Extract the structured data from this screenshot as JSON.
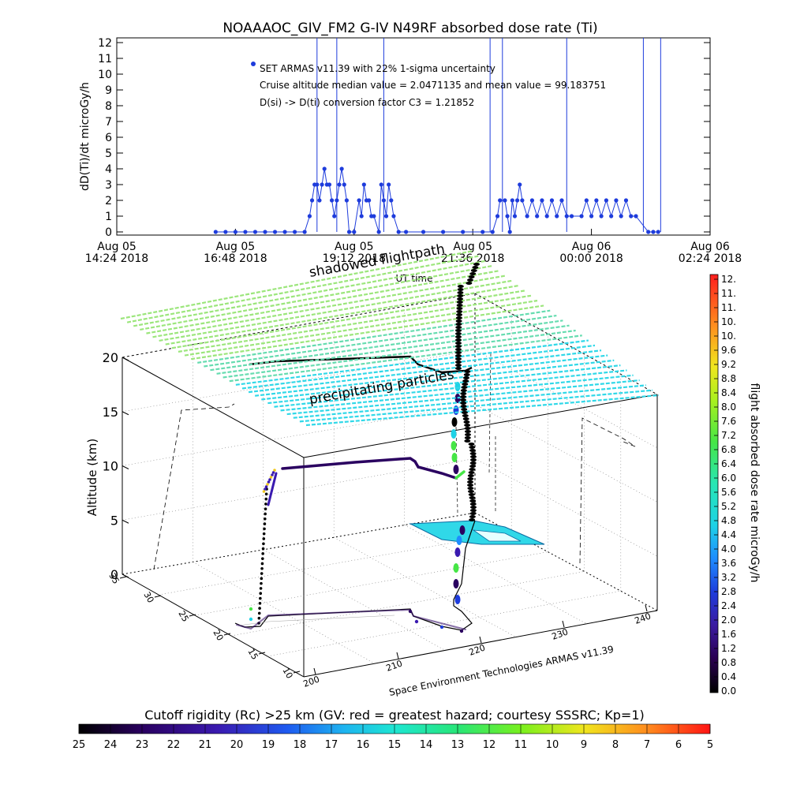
{
  "chart_data": [
    {
      "type": "scatter",
      "title": "NOAAAOC_GIV_FM2 G-IV    N49RF  absorbed dose rate (Ti)",
      "ylabel": "dD(Ti)/dt microGy/h",
      "xlabel": "UT time",
      "ylim": [
        0,
        12
      ],
      "yticks": [
        "0",
        "1",
        "2",
        "3",
        "4",
        "5",
        "6",
        "7",
        "8",
        "9",
        "10",
        "11",
        "12"
      ],
      "xlim": [
        0,
        12
      ],
      "xticks": [
        {
          "x": 0,
          "line1": "Aug 05",
          "line2": "14:24 2018"
        },
        {
          "x": 2.4,
          "line1": "Aug 05",
          "line2": "16:48 2018"
        },
        {
          "x": 4.8,
          "line1": "Aug 05",
          "line2": "19:12 2018"
        },
        {
          "x": 7.2,
          "line1": "Aug 05",
          "line2": "21:36 2018"
        },
        {
          "x": 9.6,
          "line1": "Aug 06",
          "line2": "00:00 2018"
        },
        {
          "x": 12,
          "line1": "Aug 06",
          "line2": "02:24 2018"
        }
      ],
      "annotations": [
        "SET ARMAS v11.39 with 22% 1-sigma uncertainty",
        "Cruise altitude median value = 2.0471135 and mean value = 99.183751",
        "D(si) -> D(ti) conversion factor C3 = 1.21852"
      ],
      "series_color": "#1e3cdc",
      "spikes_x": [
        4.05,
        4.45,
        5.4,
        7.55,
        7.8,
        9.1,
        10.65,
        11.0
      ],
      "points": [
        [
          2.0,
          0
        ],
        [
          2.2,
          0
        ],
        [
          2.4,
          0
        ],
        [
          2.6,
          0
        ],
        [
          2.8,
          0
        ],
        [
          3.0,
          0
        ],
        [
          3.2,
          0
        ],
        [
          3.4,
          0
        ],
        [
          3.6,
          0
        ],
        [
          3.8,
          0
        ],
        [
          3.9,
          1
        ],
        [
          3.95,
          2
        ],
        [
          4.0,
          3
        ],
        [
          4.05,
          3
        ],
        [
          4.1,
          2
        ],
        [
          4.15,
          3
        ],
        [
          4.2,
          4
        ],
        [
          4.25,
          3
        ],
        [
          4.3,
          3
        ],
        [
          4.35,
          2
        ],
        [
          4.4,
          1
        ],
        [
          4.45,
          2
        ],
        [
          4.5,
          3
        ],
        [
          4.55,
          4
        ],
        [
          4.6,
          3
        ],
        [
          4.65,
          2
        ],
        [
          4.7,
          0
        ],
        [
          4.8,
          0
        ],
        [
          4.9,
          2
        ],
        [
          4.95,
          1
        ],
        [
          5.0,
          3
        ],
        [
          5.05,
          2
        ],
        [
          5.1,
          2
        ],
        [
          5.15,
          1
        ],
        [
          5.2,
          1
        ],
        [
          5.3,
          0
        ],
        [
          5.35,
          3
        ],
        [
          5.4,
          2
        ],
        [
          5.45,
          1
        ],
        [
          5.5,
          3
        ],
        [
          5.55,
          2
        ],
        [
          5.6,
          1
        ],
        [
          5.7,
          0
        ],
        [
          5.85,
          0
        ],
        [
          6.2,
          0
        ],
        [
          6.6,
          0
        ],
        [
          7.0,
          0
        ],
        [
          7.4,
          0
        ],
        [
          7.6,
          0
        ],
        [
          7.7,
          1
        ],
        [
          7.75,
          2
        ],
        [
          7.85,
          2
        ],
        [
          7.9,
          1
        ],
        [
          7.95,
          0
        ],
        [
          8.0,
          2
        ],
        [
          8.05,
          1
        ],
        [
          8.1,
          2
        ],
        [
          8.15,
          3
        ],
        [
          8.2,
          2
        ],
        [
          8.3,
          1
        ],
        [
          8.4,
          2
        ],
        [
          8.5,
          1
        ],
        [
          8.6,
          2
        ],
        [
          8.7,
          1
        ],
        [
          8.8,
          2
        ],
        [
          8.9,
          1
        ],
        [
          9.0,
          2
        ],
        [
          9.1,
          1
        ],
        [
          9.2,
          1
        ],
        [
          9.4,
          1
        ],
        [
          9.5,
          2
        ],
        [
          9.6,
          1
        ],
        [
          9.7,
          2
        ],
        [
          9.8,
          1
        ],
        [
          9.9,
          2
        ],
        [
          10.0,
          1
        ],
        [
          10.1,
          2
        ],
        [
          10.2,
          1
        ],
        [
          10.3,
          2
        ],
        [
          10.4,
          1
        ],
        [
          10.5,
          1
        ],
        [
          10.75,
          0
        ],
        [
          10.85,
          0
        ],
        [
          10.95,
          0
        ]
      ]
    },
    {
      "type": "scatter",
      "ylabel": "Altitude (km)",
      "zticks": [
        "0",
        "5",
        "10",
        "15",
        "20"
      ],
      "xticks": [
        "200",
        "210",
        "220",
        "230",
        "240"
      ],
      "yticks": [
        "10",
        "15",
        "20",
        "25",
        "30",
        "35"
      ],
      "overlay_labels": [
        "shadowed flightpath",
        "precipitating particles"
      ],
      "credit": "Space Environment Technologies ARMAS v11.39",
      "colorbar": {
        "label": "flight absorbed dose rate microGy/h",
        "ticks": [
          "0.0",
          "0.4",
          "0.8",
          "1.2",
          "1.6",
          "2.0",
          "2.4",
          "2.8",
          "3.2",
          "3.6",
          "4.0",
          "4.4",
          "4.8",
          "5.2",
          "5.6",
          "6.0",
          "6.4",
          "6.8",
          "7.2",
          "7.6",
          "8.0",
          "8.4",
          "8.8",
          "9.2",
          "9.6",
          "10.",
          "10.",
          "11.",
          "11.",
          "12."
        ]
      }
    },
    {
      "type": "heatmap",
      "title": "Cutoff rigidity (Rc) >25 km (GV: red = greatest hazard; courtesy SSSRC; Kp=1)",
      "ticks": [
        "25",
        "24",
        "23",
        "22",
        "21",
        "20",
        "19",
        "18",
        "17",
        "16",
        "15",
        "14",
        "13",
        "12",
        "11",
        "10",
        "9",
        "8",
        "7",
        "6",
        "5"
      ]
    }
  ],
  "colors": {
    "dose_scale": [
      "#000000",
      "#2a0050",
      "#3a1aa0",
      "#1e3cdc",
      "#1e8cff",
      "#1ed2e6",
      "#28e6b4",
      "#46e646",
      "#aaf01e",
      "#f0e61e",
      "#ff8c1e",
      "#ff1e1e"
    ],
    "grid_cyan": "#30d8e8",
    "grid_green": "#9ce67c"
  }
}
